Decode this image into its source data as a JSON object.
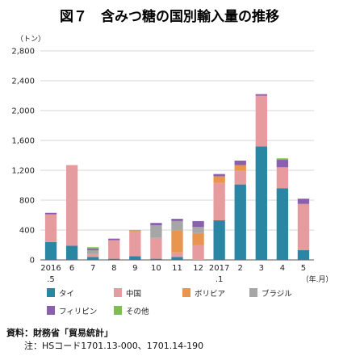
{
  "chart_data": {
    "type": "bar",
    "stacked": true,
    "title": "図７　含みつ糖の国別輸入量の推移",
    "ylabel": "（トン）",
    "xlabel": "（年.月）",
    "ylim": [
      0,
      2800
    ],
    "yticks": [
      "0",
      "400",
      "800",
      "1,200",
      "1,600",
      "2,000",
      "2,400",
      "2,800"
    ],
    "categories": [
      "2016 .5",
      "6",
      "7",
      "8",
      "9",
      "10",
      "11",
      "12",
      "2017 .1",
      "2",
      "3",
      "4",
      "5"
    ],
    "category_labels": [
      {
        "line1": "2016",
        "line2": ".5"
      },
      {
        "line1": "6",
        "line2": ""
      },
      {
        "line1": "7",
        "line2": ""
      },
      {
        "line1": "8",
        "line2": ""
      },
      {
        "line1": "9",
        "line2": ""
      },
      {
        "line1": "10",
        "line2": ""
      },
      {
        "line1": "11",
        "line2": ""
      },
      {
        "line1": "12",
        "line2": ""
      },
      {
        "line1": "2017",
        "line2": ".1"
      },
      {
        "line1": "2",
        "line2": ""
      },
      {
        "line1": "3",
        "line2": ""
      },
      {
        "line1": "4",
        "line2": ""
      },
      {
        "line1": "5",
        "line2": ""
      }
    ],
    "series": [
      {
        "name": "タイ",
        "color": "#2b86a4",
        "values": [
          240,
          190,
          40,
          15,
          50,
          15,
          40,
          0,
          530,
          1010,
          1520,
          960,
          130
        ]
      },
      {
        "name": "中国",
        "color": "#e69b9e",
        "values": [
          370,
          1080,
          40,
          250,
          330,
          280,
          60,
          200,
          500,
          190,
          680,
          280,
          620
        ]
      },
      {
        "name": "ボリビア",
        "color": "#e8964d",
        "values": [
          0,
          0,
          0,
          0,
          20,
          0,
          290,
          160,
          90,
          70,
          0,
          0,
          0
        ]
      },
      {
        "name": "ブラジル",
        "color": "#a6a6a6",
        "values": [
          0,
          0,
          50,
          0,
          0,
          170,
          130,
          80,
          0,
          0,
          0,
          0,
          0
        ]
      },
      {
        "name": "フィリピン",
        "color": "#8a5fad",
        "values": [
          20,
          0,
          20,
          20,
          0,
          30,
          30,
          80,
          30,
          60,
          20,
          100,
          70
        ]
      },
      {
        "name": "その他",
        "color": "#7dbf4a",
        "values": [
          0,
          0,
          20,
          0,
          0,
          0,
          0,
          0,
          0,
          0,
          0,
          20,
          0
        ]
      }
    ],
    "grid": true,
    "legend": "bottom"
  },
  "source": {
    "label": "資料：財務省「貿易統計」",
    "note": "注：HSコード1701.13-000、1701.14-190"
  }
}
